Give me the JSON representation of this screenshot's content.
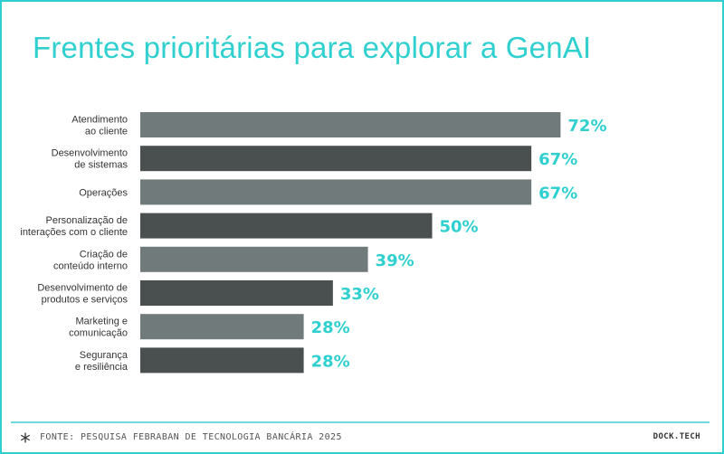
{
  "chart_data": {
    "type": "bar",
    "orientation": "horizontal",
    "title": "Frentes prioritárias para explorar a GenAI",
    "categories": [
      [
        "Atendimento",
        "ao cliente"
      ],
      [
        "Desenvolvimento",
        "de sistemas"
      ],
      [
        "Operações"
      ],
      [
        "Personalização de",
        "interações com o cliente"
      ],
      [
        "Criação de",
        "conteúdo interno"
      ],
      [
        "Desenvolvimento de",
        "produtos e serviços"
      ],
      [
        "Marketing e",
        "comunicação"
      ],
      [
        "Segurança",
        "e resiliência"
      ]
    ],
    "values": [
      72,
      67,
      67,
      50,
      39,
      33,
      28,
      28
    ],
    "value_labels": [
      "72%",
      "67%",
      "67%",
      "50%",
      "39%",
      "33%",
      "28%",
      "28%"
    ],
    "xlim": [
      0,
      100
    ],
    "xlabel": "",
    "ylabel": "",
    "grid": false,
    "bar_colors": [
      "#717a7a",
      "#4a5050"
    ],
    "value_label_color": "#2fd0cf"
  },
  "footer": {
    "source": "FONTE: PESQUISA FEBRABAN DE TECNOLOGIA BANCÁRIA 2025",
    "brand": "DOCK.TECH",
    "icon": "asterisk-icon"
  },
  "colors": {
    "accent": "#2fd0cf",
    "border": "#2ecfcf"
  }
}
